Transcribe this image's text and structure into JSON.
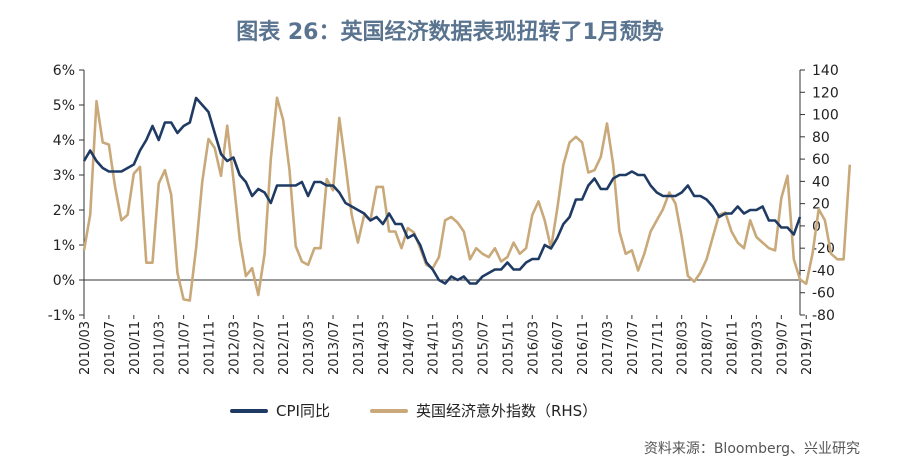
{
  "title": "图表 26：英国经济数据表现扭转了1月颓势",
  "source": "资料来源：Bloomberg、兴业研究",
  "colors": {
    "cpi": "#1f3b63",
    "surprise": "#c9a97a",
    "title": "#5a7490"
  },
  "chart_data": {
    "type": "line",
    "x_start": "2010/03",
    "x_end": "2020/01",
    "x_tick_labels": [
      "2010/03",
      "2010/07",
      "2010/11",
      "2011/03",
      "2011/07",
      "2011/11",
      "2012/03",
      "2012/07",
      "2012/11",
      "2013/03",
      "2013/07",
      "2013/11",
      "2014/03",
      "2014/07",
      "2014/11",
      "2015/03",
      "2015/07",
      "2015/11",
      "2016/03",
      "2016/07",
      "2016/11",
      "2017/03",
      "2017/07",
      "2017/11",
      "2018/03",
      "2018/07",
      "2018/11",
      "2019/03",
      "2019/07",
      "2019/11"
    ],
    "y_left": {
      "range": [
        -1,
        6
      ],
      "ticks": [
        "-1%",
        "0%",
        "1%",
        "2%",
        "3%",
        "4%",
        "5%",
        "6%"
      ],
      "values": [
        -1,
        0,
        1,
        2,
        3,
        4,
        5,
        6
      ]
    },
    "y_right": {
      "range": [
        -80,
        140
      ],
      "ticks": [
        "-80",
        "-60",
        "-40",
        "-20",
        "0",
        "20",
        "40",
        "60",
        "80",
        "100",
        "120",
        "140"
      ],
      "values": [
        -80,
        -60,
        -40,
        -20,
        0,
        20,
        40,
        60,
        80,
        100,
        120,
        140
      ]
    },
    "grid": false,
    "legend_position": "bottom",
    "series": [
      {
        "name": "CPI同比",
        "axis": "left",
        "values": [
          3.4,
          3.7,
          3.4,
          3.2,
          3.1,
          3.1,
          3.1,
          3.2,
          3.3,
          3.7,
          4.0,
          4.4,
          4.0,
          4.5,
          4.5,
          4.2,
          4.4,
          4.5,
          5.2,
          5.0,
          4.8,
          4.2,
          3.6,
          3.4,
          3.5,
          3.0,
          2.8,
          2.4,
          2.6,
          2.5,
          2.2,
          2.7,
          2.7,
          2.7,
          2.7,
          2.8,
          2.4,
          2.8,
          2.8,
          2.7,
          2.7,
          2.5,
          2.2,
          2.1,
          2.0,
          1.9,
          1.7,
          1.8,
          1.6,
          1.9,
          1.6,
          1.6,
          1.2,
          1.3,
          1.0,
          0.5,
          0.3,
          0.0,
          -0.1,
          0.1,
          0.0,
          0.1,
          -0.1,
          -0.1,
          0.1,
          0.2,
          0.3,
          0.3,
          0.5,
          0.3,
          0.3,
          0.5,
          0.6,
          0.6,
          1.0,
          0.9,
          1.2,
          1.6,
          1.8,
          2.3,
          2.3,
          2.7,
          2.9,
          2.6,
          2.6,
          2.9,
          3.0,
          3.0,
          3.1,
          3.0,
          3.0,
          2.7,
          2.5,
          2.4,
          2.4,
          2.4,
          2.5,
          2.7,
          2.4,
          2.4,
          2.3,
          2.1,
          1.8,
          1.9,
          1.9,
          2.1,
          1.9,
          2.0,
          2.0,
          2.1,
          1.7,
          1.7,
          1.5,
          1.5,
          1.3,
          1.8
        ]
      },
      {
        "name": "英国经济意外指数（RHS）",
        "axis": "right",
        "values": [
          -22,
          10,
          112,
          75,
          73,
          35,
          5,
          10,
          47,
          53,
          -33,
          -33,
          38,
          50,
          28,
          -42,
          -66,
          -67,
          -20,
          40,
          78,
          70,
          45,
          90,
          42,
          -12,
          -45,
          -38,
          -62,
          -25,
          60,
          115,
          95,
          50,
          -18,
          -32,
          -35,
          -20,
          -20,
          42,
          32,
          97,
          55,
          10,
          -15,
          10,
          5,
          35,
          35,
          -5,
          -5,
          -20,
          -2,
          -6,
          -20,
          -35,
          -38,
          -28,
          5,
          8,
          3,
          -5,
          -30,
          -20,
          -25,
          -28,
          -20,
          -32,
          -28,
          -15,
          -25,
          -20,
          10,
          22,
          5,
          -20,
          15,
          55,
          75,
          80,
          75,
          48,
          50,
          62,
          92,
          55,
          -5,
          -25,
          -22,
          -40,
          -25,
          -5,
          5,
          15,
          30,
          20,
          -10,
          -45,
          -50,
          -42,
          -30,
          -10,
          10,
          12,
          -5,
          -15,
          -20,
          5,
          -10,
          -15,
          -20,
          -22,
          25,
          45,
          -30,
          -48,
          -52,
          -25,
          15,
          5,
          -25,
          -30,
          -30,
          55
        ]
      }
    ]
  }
}
